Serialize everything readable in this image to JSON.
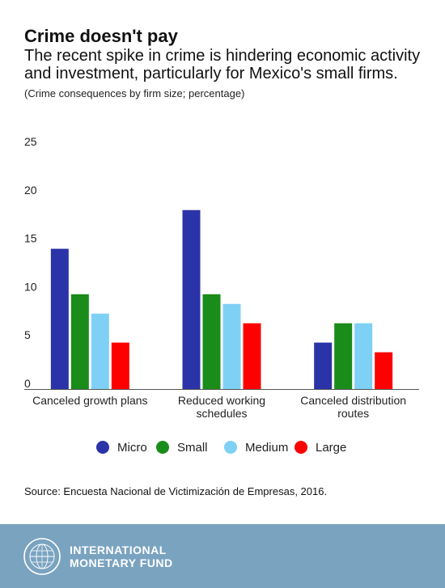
{
  "header": {
    "title": "Crime doesn't pay",
    "subtitle": "The recent spike in crime is hindering economic activity and investment, particularly for Mexico's small firms.",
    "note": "(Crime consequences by firm size; percentage)"
  },
  "chart_data": {
    "type": "bar",
    "categories": [
      [
        "Canceled growth plans"
      ],
      [
        "Reduced working",
        "schedules"
      ],
      [
        "Canceled distribution",
        "routes"
      ]
    ],
    "series": [
      {
        "name": "Micro",
        "color": "#2a33a8",
        "values": [
          14.5,
          18.5,
          4.8
        ]
      },
      {
        "name": "Small",
        "color": "#1a8c1a",
        "values": [
          9.8,
          9.8,
          6.8
        ]
      },
      {
        "name": "Medium",
        "color": "#7fd0f5",
        "values": [
          7.8,
          8.8,
          6.8
        ]
      },
      {
        "name": "Large",
        "color": "#ff0000",
        "values": [
          4.8,
          6.8,
          3.8
        ]
      }
    ],
    "yticks": [
      "0",
      "5",
      "10",
      "15",
      "20",
      "25"
    ],
    "ylim": [
      0,
      25
    ],
    "grid": false,
    "legend_position": "bottom"
  },
  "source": "Source: Encuesta Nacional de Victimización de Empresas, 2016.",
  "footer": {
    "line1": "INTERNATIONAL",
    "line2": "MONETARY FUND"
  }
}
